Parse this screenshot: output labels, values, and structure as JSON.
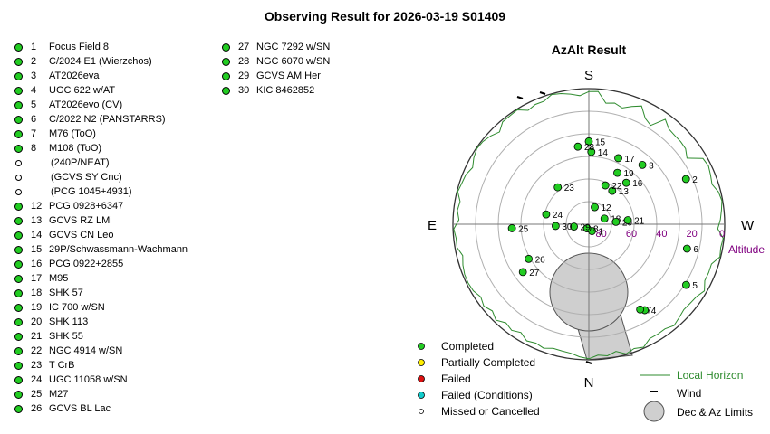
{
  "title": "Observing Result for 2026-03-19 S01409",
  "targets_col1": [
    {
      "num": "1",
      "name": "Focus Field 8",
      "status": "completed"
    },
    {
      "num": "2",
      "name": "C/2024 E1 (Wierzchos)",
      "status": "completed"
    },
    {
      "num": "3",
      "name": "AT2026eva",
      "status": "completed"
    },
    {
      "num": "4",
      "name": "UGC 622 w/AT",
      "status": "completed"
    },
    {
      "num": "5",
      "name": "AT2026evo (CV)",
      "status": "completed"
    },
    {
      "num": "6",
      "name": "C/2022 N2 (PANSTARRS)",
      "status": "completed"
    },
    {
      "num": "7",
      "name": "M76 (ToO)",
      "status": "completed"
    },
    {
      "num": "8",
      "name": "M108 (ToO)",
      "status": "completed"
    },
    {
      "num": "",
      "name": "(240P/NEAT)",
      "status": "missed"
    },
    {
      "num": "",
      "name": "(GCVS SY Cnc)",
      "status": "missed"
    },
    {
      "num": "",
      "name": "(PCG 1045+4931)",
      "status": "missed"
    },
    {
      "num": "12",
      "name": "PCG 0928+6347",
      "status": "completed"
    },
    {
      "num": "13",
      "name": "GCVS RZ LMi",
      "status": "completed"
    },
    {
      "num": "14",
      "name": "GCVS CN Leo",
      "status": "completed"
    },
    {
      "num": "15",
      "name": "29P/Schwassmann-Wachmann",
      "status": "completed"
    },
    {
      "num": "16",
      "name": "PCG 0922+2855",
      "status": "completed"
    },
    {
      "num": "17",
      "name": "M95",
      "status": "completed"
    },
    {
      "num": "18",
      "name": "SHK 57",
      "status": "completed"
    },
    {
      "num": "19",
      "name": "IC 700 w/SN",
      "status": "completed"
    },
    {
      "num": "20",
      "name": "SHK 113",
      "status": "completed"
    },
    {
      "num": "21",
      "name": "SHK 55",
      "status": "completed"
    },
    {
      "num": "22",
      "name": "NGC 4914 w/SN",
      "status": "completed"
    },
    {
      "num": "23",
      "name": "T CrB",
      "status": "completed"
    },
    {
      "num": "24",
      "name": "UGC 11058 w/SN",
      "status": "completed"
    },
    {
      "num": "25",
      "name": "M27",
      "status": "completed"
    },
    {
      "num": "26",
      "name": "GCVS BL Lac",
      "status": "completed"
    }
  ],
  "targets_col2": [
    {
      "num": "27",
      "name": "NGC 7292 w/SN",
      "status": "completed"
    },
    {
      "num": "28",
      "name": "NGC 6070 w/SN",
      "status": "completed"
    },
    {
      "num": "29",
      "name": "GCVS AM Her",
      "status": "completed"
    },
    {
      "num": "30",
      "name": "KIC 8462852",
      "status": "completed"
    }
  ],
  "plot": {
    "title": "AzAlt Result",
    "directions": {
      "south": "S",
      "north": "N",
      "east": "E",
      "west": "W"
    },
    "altitude_label": "Altitude",
    "altitude_ticks": [
      "80",
      "60",
      "40",
      "20",
      "0"
    ],
    "limits_center_altitude": 45,
    "colors": {
      "completed": "#22cc22",
      "partial": "#ffee00",
      "failed": "#dd1111",
      "failed_conditions": "#11cccc",
      "horizon": "#2e8b2e",
      "limits_fill": "#cfcfcf",
      "altitude_text": "#800080"
    },
    "markers": [
      {
        "label": "1",
        "az": 205,
        "alt": 85
      },
      {
        "label": "2",
        "az": 295,
        "alt": 19
      },
      {
        "label": "3",
        "az": 318,
        "alt": 37
      },
      {
        "label": "4",
        "az": 213,
        "alt": 22
      },
      {
        "label": "5",
        "az": 238,
        "alt": 14
      },
      {
        "label": "6",
        "az": 256,
        "alt": 23
      },
      {
        "label": "7",
        "az": 211,
        "alt": 24
      },
      {
        "label": "8",
        "az": 157,
        "alt": 87
      },
      {
        "label": "12",
        "az": 341,
        "alt": 78
      },
      {
        "label": "13",
        "az": 325,
        "alt": 63
      },
      {
        "label": "14",
        "az": 358,
        "alt": 42
      },
      {
        "label": "15",
        "az": 0,
        "alt": 35
      },
      {
        "label": "16",
        "az": 318,
        "alt": 53
      },
      {
        "label": "17",
        "az": 336,
        "alt": 42
      },
      {
        "label": "18",
        "az": 290,
        "alt": 79
      },
      {
        "label": "19",
        "az": 331,
        "alt": 51
      },
      {
        "label": "20",
        "az": 275,
        "alt": 72
      },
      {
        "label": "21",
        "az": 276,
        "alt": 64
      },
      {
        "label": "22",
        "az": 337,
        "alt": 62
      },
      {
        "label": "23",
        "az": 40,
        "alt": 58
      },
      {
        "label": "24",
        "az": 77,
        "alt": 61
      },
      {
        "label": "25",
        "az": 93,
        "alt": 39
      },
      {
        "label": "26",
        "az": 120,
        "alt": 44
      },
      {
        "label": "27",
        "az": 126,
        "alt": 36
      },
      {
        "label": "28",
        "az": 8,
        "alt": 38
      },
      {
        "label": "29",
        "az": 99,
        "alt": 80
      },
      {
        "label": "30",
        "az": 93,
        "alt": 68
      }
    ]
  },
  "legend_status": [
    {
      "key": "completed",
      "label": "Completed"
    },
    {
      "key": "partial",
      "label": "Partially Completed"
    },
    {
      "key": "failed",
      "label": "Failed"
    },
    {
      "key": "failed_conditions",
      "label": "Failed (Conditions)"
    },
    {
      "key": "missed",
      "label": "Missed or Cancelled"
    }
  ],
  "legend_lines": [
    {
      "key": "horizon",
      "label": "Local Horizon"
    },
    {
      "key": "wind",
      "label": "Wind"
    },
    {
      "key": "limits",
      "label": "Dec & Az Limits"
    }
  ]
}
